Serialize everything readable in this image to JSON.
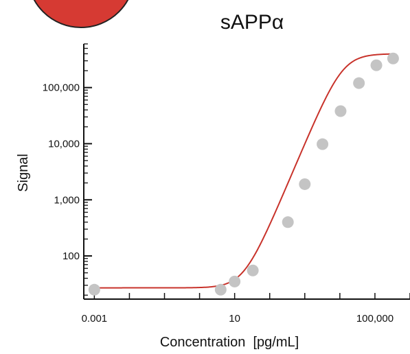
{
  "chart_data": {
    "type": "scatter",
    "title": "sAPPα",
    "xlabel": "Concentration  [pg/mL]",
    "ylabel": "Signal",
    "x_scale": "log",
    "y_scale": "log",
    "xlim": [
      0.0005,
      1000000
    ],
    "ylim": [
      17,
      600000
    ],
    "x_ticks": [
      {
        "value": 0.001,
        "label": "0.001"
      },
      {
        "value": 10,
        "label": "10"
      },
      {
        "value": 100000,
        "label": "100,000"
      }
    ],
    "y_ticks": [
      {
        "value": 100,
        "label": "100"
      },
      {
        "value": 1000,
        "label": "1,000"
      },
      {
        "value": 10000,
        "label": "10,000"
      },
      {
        "value": 100000,
        "label": "100,000"
      }
    ],
    "points": [
      {
        "x": 0.001,
        "y": 25
      },
      {
        "x": 4,
        "y": 25
      },
      {
        "x": 10,
        "y": 35
      },
      {
        "x": 33,
        "y": 55
      },
      {
        "x": 330,
        "y": 400
      },
      {
        "x": 1000,
        "y": 1900
      },
      {
        "x": 3200,
        "y": 9800
      },
      {
        "x": 10500,
        "y": 38000
      },
      {
        "x": 35000,
        "y": 120000
      },
      {
        "x": 110000,
        "y": 250000
      },
      {
        "x": 330000,
        "y": 330000
      }
    ],
    "fit_curve": {
      "type": "4PL",
      "bottom": 27,
      "top": 400000,
      "ec50": 12000,
      "hill": 1.48
    },
    "colors": {
      "points": "#c4c4c4",
      "curve": "#c8322a",
      "logo": "#d63a33"
    },
    "grid": false,
    "legend": "none"
  }
}
